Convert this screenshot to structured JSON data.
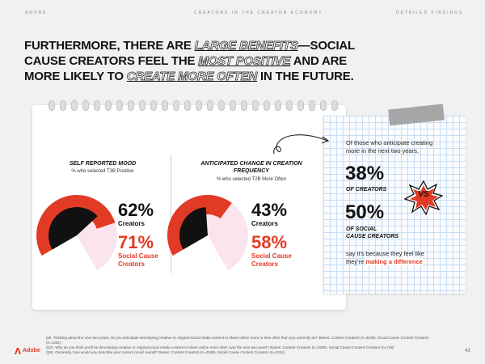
{
  "header": {
    "left": "ADOBE",
    "center": "CREATORS IN THE CREATOR ECONOMY",
    "right": "DETAILED FINDINGS"
  },
  "headline": {
    "p1": "FURTHERMORE, THERE ARE ",
    "e1": "LARGE BENEFITS",
    "p2": "—SOCIAL CAUSE CREATORS FEEL THE ",
    "e2": "MOST POSITIVE",
    "p3": " AND ARE MORE LIKELY TO ",
    "e3": "CREATE MORE OFTEN",
    "p4": " IN THE FUTURE."
  },
  "chart_data": [
    {
      "type": "gauge",
      "title": "SELF REPORTED MOOD",
      "subtitle": "% who selected T3B Positive",
      "series": [
        {
          "name": "Creators",
          "value": 62
        },
        {
          "name": "Social Cause Creators",
          "value": 71
        }
      ]
    },
    {
      "type": "gauge",
      "title": "ANTICIPATED CHANGE IN CREATION FREQUENCY",
      "subtitle": "% who selected T2B More Often",
      "series": [
        {
          "name": "Creators",
          "value": 43
        },
        {
          "name": "Social Cause Creators",
          "value": 58
        }
      ]
    }
  ],
  "labels": {
    "pct1a": "62%",
    "lbl1a": "Creators",
    "pct1b": "71%",
    "lbl1b1": "Social Cause",
    "lbl1b2": "Creators",
    "pct2a": "43%",
    "lbl2a": "Creators",
    "pct2b": "58%",
    "lbl2b1": "Social Cause",
    "lbl2b2": "Creators"
  },
  "note": {
    "intro1": "Of those who anticipate creating",
    "intro2": "more in the next two years,",
    "pct1": "38%",
    "lbl1": "OF CREATORS",
    "vs": "VS",
    "pct2": "50%",
    "lbl2a": "OF SOCIAL",
    "lbl2b": "CAUSE CREATORS",
    "out1": "say it's because they feel like",
    "out2a": "they're ",
    "out2b": "making a difference"
  },
  "footnotes": {
    "f1": "Q9. Thinking about the next two years, do you anticipate developing creative or original social media content to share online more or less often than you currently do? Bases: Content Creators (n=4535), Social Cause Content Creators (n=1251)",
    "f2": "Q10. Why do you think you'll be developing creative or original social media content to share online more often over the next two years? Bases: Content Creators (n=1936), Social Cause Content Creators (n=716)",
    "f3": "Q26. Generally, how would you describe your current mood overall? Bases: Content Creators (n=4535), Social Cause Content Creators (n=1251)"
  },
  "footer": {
    "brand": "Adobe",
    "page": "43"
  },
  "colors": {
    "accent": "#e23b25",
    "dark": "#111111",
    "pink": "#f4b3cc"
  }
}
